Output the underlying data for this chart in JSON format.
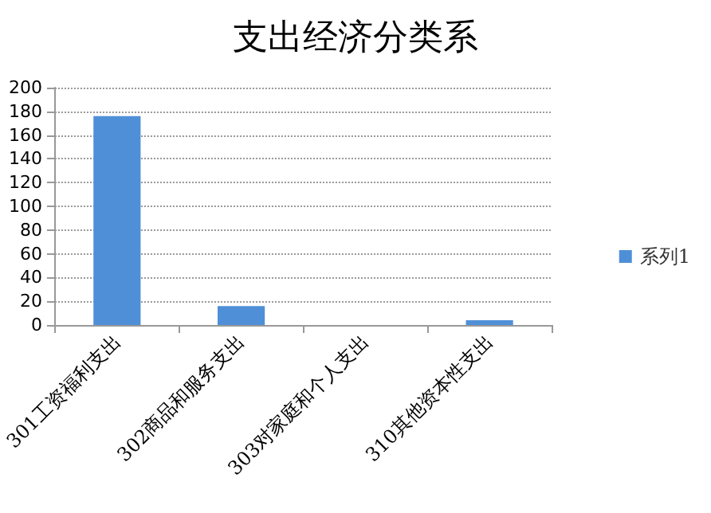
{
  "chart_data": {
    "type": "bar",
    "title": "支出经济分类系",
    "categories": [
      "301工资福利支出",
      "302商品和服务支出",
      "303对家庭和个人支出",
      "310其他资本性支出"
    ],
    "series": [
      {
        "name": "系列1",
        "color": "#4f8fd8",
        "values": [
          176,
          16,
          0,
          4
        ]
      }
    ],
    "ylim": [
      0,
      200
    ],
    "yticks": [
      0,
      20,
      40,
      60,
      80,
      100,
      120,
      140,
      160,
      180,
      200
    ],
    "grid": "y",
    "legend": "right"
  }
}
